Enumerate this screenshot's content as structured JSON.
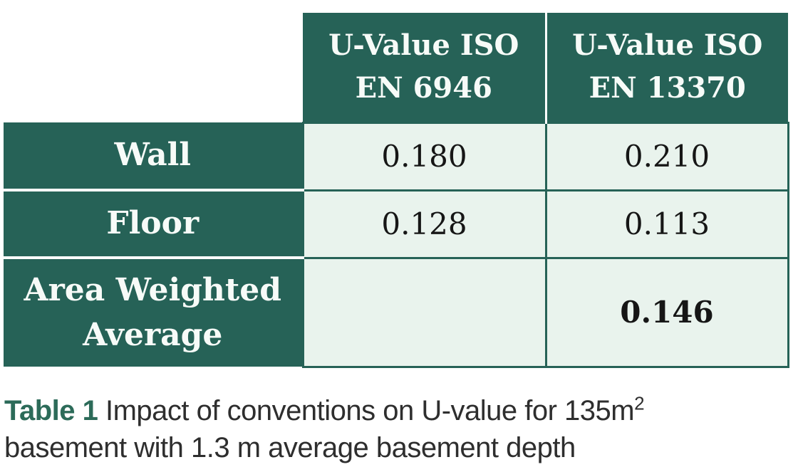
{
  "table": {
    "col_headers": [
      "U-Value ISO EN 6946",
      "U-Value ISO EN 13370"
    ],
    "rows": [
      {
        "label": "Wall",
        "values": [
          "0.180",
          "0.210"
        ]
      },
      {
        "label": "Floor",
        "values": [
          "0.128",
          "0.113"
        ]
      },
      {
        "label": "Area Weighted Average",
        "values": [
          "",
          "0.146"
        ]
      }
    ]
  },
  "caption": {
    "label": "Table 1",
    "line1": "Impact of conventions on U-value for 135m",
    "sup": "2",
    "line2": "basement with 1.3 m average basement depth"
  },
  "colors": {
    "table_green": "#266257",
    "cell_mint": "#e9f3ed",
    "caption_green": "#2c6b59",
    "caption_text": "#2e2e2e",
    "number_text": "#161616"
  },
  "chart_data": {
    "type": "table",
    "title": "Table 1 Impact of conventions on U-value for 135m2 basement with 1.3 m average basement depth",
    "columns": [
      "",
      "U-Value ISO EN 6946",
      "U-Value ISO EN 13370"
    ],
    "rows": [
      [
        "Wall",
        0.18,
        0.21
      ],
      [
        "Floor",
        0.128,
        0.113
      ],
      [
        "Area Weighted Average",
        null,
        0.146
      ]
    ]
  }
}
